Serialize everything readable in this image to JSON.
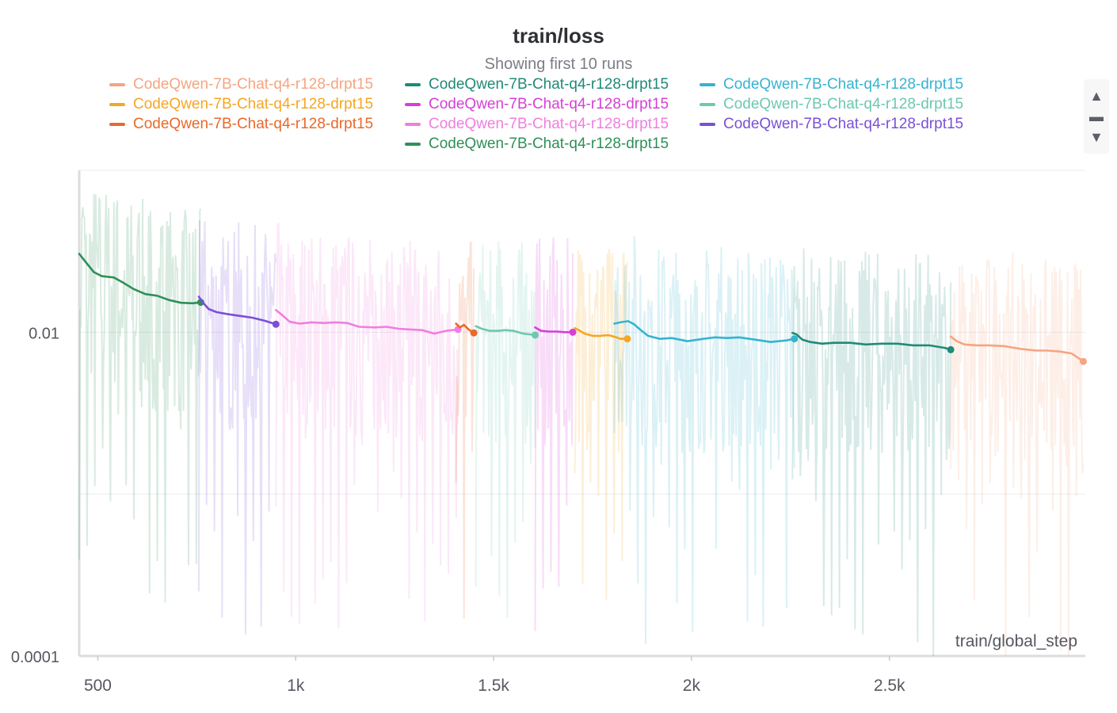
{
  "chart_data": {
    "type": "line",
    "title": "train/loss",
    "subtitle": "Showing first 10 runs",
    "xlabel": "train/global_step",
    "ylabel": "",
    "yscale": "log",
    "xlim": [
      453,
      2995
    ],
    "ylim": [
      0.0001,
      0.1
    ],
    "x_ticks": [
      500,
      1000,
      1500,
      2000,
      2500
    ],
    "x_tick_labels": [
      "500",
      "1k",
      "1.5k",
      "2k",
      "2.5k"
    ],
    "y_ticks": [
      0.0001,
      0.01
    ],
    "y_tick_labels": [
      "0.0001",
      "0.01"
    ],
    "legend_position": "top",
    "legend": [
      {
        "name": "CodeQwen-7B-Chat-q4-r128-drpt15",
        "color": "#f4a582"
      },
      {
        "name": "CodeQwen-7B-Chat-q4-r128-drpt15",
        "color": "#f5a623"
      },
      {
        "name": "CodeQwen-7B-Chat-q4-r128-drpt15",
        "color": "#e8692a"
      },
      {
        "name": "CodeQwen-7B-Chat-q4-r128-drpt15",
        "color": "#1f8a78"
      },
      {
        "name": "CodeQwen-7B-Chat-q4-r128-drpt15",
        "color": "#d63fd6"
      },
      {
        "name": "CodeQwen-7B-Chat-q4-r128-drpt15",
        "color": "#f07ee0"
      },
      {
        "name": "CodeQwen-7B-Chat-q4-r128-drpt15",
        "color": "#2f8f57"
      },
      {
        "name": "CodeQwen-7B-Chat-q4-r128-drpt15",
        "color": "#36b3cf"
      },
      {
        "name": "CodeQwen-7B-Chat-q4-r128-drpt15",
        "color": "#6cc8b0"
      },
      {
        "name": "CodeQwen-7B-Chat-q4-r128-drpt15",
        "color": "#7b4fd6"
      }
    ],
    "series": [
      {
        "name": "CodeQwen-7B-Chat-q4-r128-drpt15",
        "color": "#2f8f57",
        "x": [
          453,
          470,
          490,
          510,
          540,
          560,
          590,
          620,
          650,
          680,
          710,
          740,
          760
        ],
        "y": [
          0.0305,
          0.027,
          0.0235,
          0.0222,
          0.0218,
          0.0205,
          0.0185,
          0.0172,
          0.0168,
          0.0158,
          0.0152,
          0.0151,
          0.0153
        ]
      },
      {
        "name": "CodeQwen-7B-Chat-q4-r128-drpt15",
        "color": "#7b4fd6",
        "x": [
          755,
          765,
          780,
          800,
          830,
          860,
          890,
          920,
          950
        ],
        "y": [
          0.0166,
          0.0153,
          0.0139,
          0.0133,
          0.0129,
          0.0126,
          0.0123,
          0.0118,
          0.0112
        ]
      },
      {
        "name": "CodeQwen-7B-Chat-q4-r128-drpt15",
        "color": "#f07ee0",
        "x": [
          950,
          965,
          985,
          1010,
          1040,
          1070,
          1100,
          1130,
          1160,
          1200,
          1230,
          1260,
          1290,
          1320,
          1350,
          1380,
          1410
        ],
        "y": [
          0.0137,
          0.0128,
          0.0116,
          0.0113,
          0.0115,
          0.0114,
          0.0115,
          0.0114,
          0.0108,
          0.0107,
          0.0108,
          0.0105,
          0.0104,
          0.0103,
          0.0098,
          0.0102,
          0.0104
        ]
      },
      {
        "name": "CodeQwen-7B-Chat-q4-r128-drpt15",
        "color": "#e8692a",
        "x": [
          1405,
          1415,
          1425,
          1437,
          1450
        ],
        "y": [
          0.0113,
          0.0107,
          0.0111,
          0.0104,
          0.0099
        ]
      },
      {
        "name": "CodeQwen-7B-Chat-q4-r128-drpt15",
        "color": "#6cc8b0",
        "x": [
          1455,
          1470,
          1490,
          1510,
          1530,
          1550,
          1575,
          1590,
          1605
        ],
        "y": [
          0.0109,
          0.0105,
          0.0102,
          0.0102,
          0.0103,
          0.0102,
          0.0098,
          0.0097,
          0.0096
        ]
      },
      {
        "name": "CodeQwen-7B-Chat-q4-r128-drpt15",
        "color": "#d63fd6",
        "x": [
          1605,
          1620,
          1640,
          1660,
          1680,
          1700
        ],
        "y": [
          0.0107,
          0.0102,
          0.0101,
          0.0101,
          0.01,
          0.01
        ]
      },
      {
        "name": "CodeQwen-7B-Chat-q4-r128-drpt15",
        "color": "#f5a623",
        "x": [
          1705,
          1715,
          1730,
          1750,
          1770,
          1790,
          1810,
          1820,
          1838
        ],
        "y": [
          0.0106,
          0.0103,
          0.0098,
          0.0095,
          0.0095,
          0.0096,
          0.0093,
          0.0091,
          0.0091
        ]
      },
      {
        "name": "CodeQwen-7B-Chat-q4-r128-drpt15",
        "color": "#36b3cf",
        "x": [
          1805,
          1820,
          1840,
          1855,
          1870,
          1890,
          1920,
          1950,
          1990,
          2030,
          2060,
          2090,
          2120,
          2160,
          2200,
          2240,
          2260
        ],
        "y": [
          0.0113,
          0.0115,
          0.0117,
          0.0112,
          0.0104,
          0.0095,
          0.0091,
          0.0092,
          0.0088,
          0.0091,
          0.0093,
          0.0092,
          0.0093,
          0.009,
          0.0087,
          0.0089,
          0.0091
        ]
      },
      {
        "name": "CodeQwen-7B-Chat-q4-r128-drpt15",
        "color": "#1f8a78",
        "x": [
          2255,
          2265,
          2280,
          2300,
          2330,
          2360,
          2400,
          2440,
          2480,
          2520,
          2560,
          2600,
          2640,
          2655
        ],
        "y": [
          0.0099,
          0.0097,
          0.009,
          0.0087,
          0.0085,
          0.0086,
          0.0086,
          0.0084,
          0.0085,
          0.0085,
          0.0083,
          0.0083,
          0.008,
          0.0078
        ]
      },
      {
        "name": "CodeQwen-7B-Chat-q4-r128-drpt15",
        "color": "#f4a582",
        "x": [
          2655,
          2670,
          2690,
          2720,
          2750,
          2790,
          2830,
          2870,
          2900,
          2930,
          2960,
          2990
        ],
        "y": [
          0.0094,
          0.0088,
          0.0084,
          0.0083,
          0.0083,
          0.0082,
          0.0079,
          0.0077,
          0.0077,
          0.0076,
          0.0074,
          0.0066
        ]
      }
    ]
  }
}
